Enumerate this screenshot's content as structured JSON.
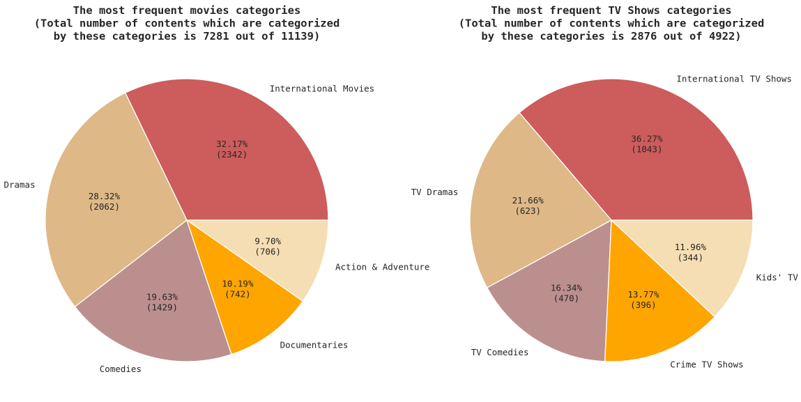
{
  "chart_data": [
    {
      "type": "pie",
      "title": "The most frequent movies categories\n(Total number of contents which are categorized\nby these categories is 7281 out of 11139)",
      "slices": [
        {
          "label": "International Movies",
          "value": 2342,
          "percent_label": "32.17%",
          "count_label": "(2342)",
          "color": "#cd5c5c"
        },
        {
          "label": "Dramas",
          "value": 2062,
          "percent_label": "28.32%",
          "count_label": "(2062)",
          "color": "#deb887"
        },
        {
          "label": "Comedies",
          "value": 1429,
          "percent_label": "19.63%",
          "count_label": "(1429)",
          "color": "#bc8f8f"
        },
        {
          "label": "Documentaries",
          "value": 742,
          "percent_label": "10.19%",
          "count_label": "(742)",
          "color": "#ffa500"
        },
        {
          "label": "Action & Adventure",
          "value": 706,
          "percent_label": "9.70%",
          "count_label": "(706)",
          "color": "#f5deb3"
        }
      ]
    },
    {
      "type": "pie",
      "title": "The most frequent TV Shows categories\n(Total number of contents which are categorized\nby these categories is 2876 out of 4922)",
      "slices": [
        {
          "label": "International TV Shows",
          "value": 1043,
          "percent_label": "36.27%",
          "count_label": "(1043)",
          "color": "#cd5c5c"
        },
        {
          "label": "TV Dramas",
          "value": 623,
          "percent_label": "21.66%",
          "count_label": "(623)",
          "color": "#deb887"
        },
        {
          "label": "TV Comedies",
          "value": 470,
          "percent_label": "16.34%",
          "count_label": "(470)",
          "color": "#bc8f8f"
        },
        {
          "label": "Crime TV Shows",
          "value": 396,
          "percent_label": "13.77%",
          "count_label": "(396)",
          "color": "#ffa500"
        },
        {
          "label": "Kids' TV",
          "value": 344,
          "percent_label": "11.96%",
          "count_label": "(344)",
          "color": "#f5deb3"
        }
      ]
    }
  ]
}
